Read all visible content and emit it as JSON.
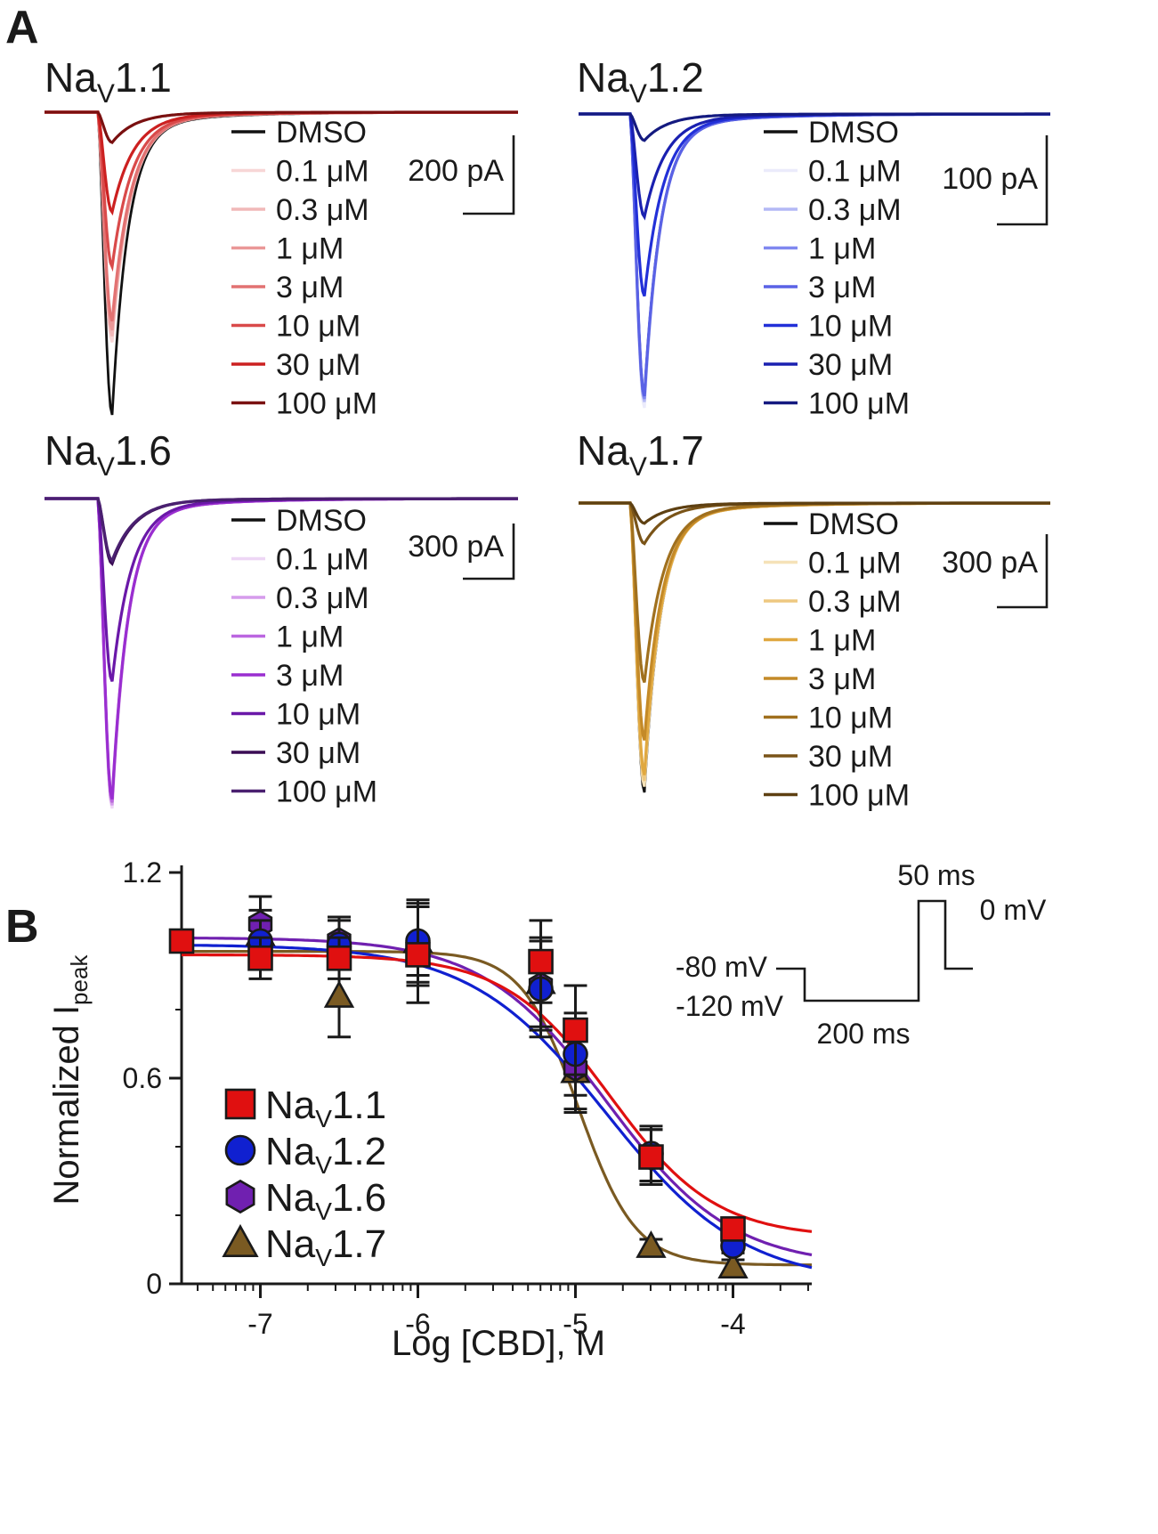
{
  "panels": {
    "a_label": "A",
    "b_label": "B"
  },
  "concentration_labels": [
    "DMSO",
    "0.1 μM",
    "0.3 μM",
    "1 μM",
    "3 μM",
    "10 μM",
    "30 μM",
    "100 μM"
  ],
  "chart_data": [
    {
      "type": "line",
      "panel": "A",
      "title_base": "Na",
      "title_sub": "V",
      "title_suffix": "1.1",
      "scale_bar_label": "200 pA",
      "series": [
        {
          "name": "DMSO",
          "color": "#111111",
          "relative_peak": 1.0
        },
        {
          "name": "0.1 μM",
          "color": "#f7d6d6",
          "relative_peak": 0.76
        },
        {
          "name": "0.3 μM",
          "color": "#f1b8b8",
          "relative_peak": 0.74
        },
        {
          "name": "1 μM",
          "color": "#ea9898",
          "relative_peak": 0.72
        },
        {
          "name": "3 μM",
          "color": "#e27272",
          "relative_peak": 0.69
        },
        {
          "name": "10 μM",
          "color": "#d94a4a",
          "relative_peak": 0.51
        },
        {
          "name": "30 μM",
          "color": "#cc2020",
          "relative_peak": 0.33
        },
        {
          "name": "100 μM",
          "color": "#7a1010",
          "relative_peak": 0.1
        }
      ]
    },
    {
      "type": "line",
      "panel": "A",
      "title_base": "Na",
      "title_sub": "V",
      "title_suffix": "1.2",
      "scale_bar_label": "100 pA",
      "series": [
        {
          "name": "DMSO",
          "color": "#111111",
          "relative_peak": 0.96
        },
        {
          "name": "0.1 μM",
          "color": "#ebebfb",
          "relative_peak": 1.0
        },
        {
          "name": "0.3 μM",
          "color": "#b3b8f5",
          "relative_peak": 0.98
        },
        {
          "name": "1 μM",
          "color": "#8088f0",
          "relative_peak": 0.97
        },
        {
          "name": "3 μM",
          "color": "#5a62e6",
          "relative_peak": 0.96
        },
        {
          "name": "10 μM",
          "color": "#2230d8",
          "relative_peak": 0.62
        },
        {
          "name": "30 μM",
          "color": "#1a20b0",
          "relative_peak": 0.35
        },
        {
          "name": "100 μM",
          "color": "#141a80",
          "relative_peak": 0.09
        }
      ]
    },
    {
      "type": "line",
      "panel": "A",
      "title_base": "Na",
      "title_sub": "V",
      "title_suffix": "1.6",
      "scale_bar_label": "300 pA",
      "series": [
        {
          "name": "DMSO",
          "color": "#111111",
          "relative_peak": 0.98
        },
        {
          "name": "0.1 μM",
          "color": "#eed6f5",
          "relative_peak": 1.0
        },
        {
          "name": "0.3 μM",
          "color": "#d59cec",
          "relative_peak": 0.99
        },
        {
          "name": "1 μM",
          "color": "#bb66e0",
          "relative_peak": 0.98
        },
        {
          "name": "3 μM",
          "color": "#9a2ed0",
          "relative_peak": 0.97
        },
        {
          "name": "10 μM",
          "color": "#6a18a8",
          "relative_peak": 0.59
        },
        {
          "name": "30 μM",
          "color": "#3a0c54",
          "relative_peak": 0.21
        },
        {
          "name": "100 μM",
          "color": "#4a2070",
          "relative_peak": 0.2
        }
      ]
    },
    {
      "type": "line",
      "panel": "A",
      "title_base": "Na",
      "title_sub": "V",
      "title_suffix": "1.7",
      "scale_bar_label": "300 pA",
      "series": [
        {
          "name": "DMSO",
          "color": "#111111",
          "relative_peak": 1.0
        },
        {
          "name": "0.1 μM",
          "color": "#f5e2b8",
          "relative_peak": 0.98
        },
        {
          "name": "0.3 μM",
          "color": "#eec880",
          "relative_peak": 0.96
        },
        {
          "name": "1 μM",
          "color": "#e0a840",
          "relative_peak": 0.94
        },
        {
          "name": "3 μM",
          "color": "#c48a28",
          "relative_peak": 0.82
        },
        {
          "name": "10 μM",
          "color": "#a0701e",
          "relative_peak": 0.62
        },
        {
          "name": "30 μM",
          "color": "#7a5418",
          "relative_peak": 0.14
        },
        {
          "name": "100 μM",
          "color": "#5e4012",
          "relative_peak": 0.07
        }
      ]
    },
    {
      "type": "scatter",
      "panel": "B",
      "xlabel": "Log [CBD], M",
      "ylabel_base": "Normalized I",
      "ylabel_sub": "peak",
      "xlim": [
        -7.5,
        -3.5
      ],
      "ylim": [
        0,
        1.2
      ],
      "xticks": [
        -7,
        -6,
        -5,
        -4
      ],
      "xtick_labels": [
        "-7",
        "-6",
        "-5",
        "-4"
      ],
      "yticks": [
        0,
        0.6,
        1.2
      ],
      "ytick_labels": [
        "0",
        "0.6",
        "1.2"
      ],
      "series": [
        {
          "name": "NaV1.1",
          "legend_base": "Na",
          "legend_sub": "V",
          "legend_suffix": "1.1",
          "marker": "square",
          "color": "#e01010",
          "x": [
            -7.5,
            -7,
            -6.5,
            -6,
            -5.22,
            -5,
            -4.52,
            -4
          ],
          "y": [
            1.0,
            0.95,
            0.95,
            0.96,
            0.94,
            0.74,
            0.37,
            0.16
          ],
          "err": [
            0,
            0.06,
            0.06,
            0.14,
            0.12,
            0.13,
            0.08,
            0.02
          ],
          "fit": {
            "top": 0.96,
            "bottom": 0.135,
            "log_ic50": -4.78,
            "hill": 1.3
          }
        },
        {
          "name": "NaV1.2",
          "legend_base": "Na",
          "legend_sub": "V",
          "legend_suffix": "1.2",
          "marker": "circle",
          "color": "#1020d0",
          "x": [
            -7,
            -6.5,
            -6,
            -5.22,
            -5,
            -4.52,
            -4
          ],
          "y": [
            1.0,
            0.99,
            1.0,
            0.86,
            0.67,
            0.38,
            0.11
          ],
          "err": [
            0.06,
            0.07,
            0.12,
            0.14,
            0.12,
            0.08,
            0.02
          ],
          "fit": {
            "top": 0.99,
            "bottom": 0.0,
            "log_ic50": -4.8,
            "hill": 1.0
          }
        },
        {
          "name": "NaV1.6",
          "legend_base": "Na",
          "legend_sub": "V",
          "legend_suffix": "1.6",
          "marker": "hexagon",
          "color": "#7020b0",
          "x": [
            -7,
            -6.5,
            -6,
            -5.22,
            -5,
            -4.52,
            -4
          ],
          "y": [
            1.05,
            1.0,
            0.99,
            0.87,
            0.63,
            0.37,
            0.12
          ],
          "err": [
            0.08,
            0.07,
            0.12,
            0.13,
            0.12,
            0.08,
            0.02
          ],
          "fit": {
            "top": 1.01,
            "bottom": 0.05,
            "log_ic50": -4.8,
            "hill": 1.1
          }
        },
        {
          "name": "NaV1.7",
          "legend_base": "Na",
          "legend_sub": "V",
          "legend_suffix": "1.7",
          "marker": "triangle",
          "color": "#7a5a22",
          "x": [
            -7,
            -6.5,
            -6,
            -5.22,
            -5,
            -4.52,
            -4
          ],
          "y": [
            1.02,
            0.84,
            1.0,
            0.88,
            0.62,
            0.11,
            0.05
          ],
          "err": [
            0.07,
            0.12,
            0.1,
            0.13,
            0.12,
            0.02,
            0.02
          ],
          "fit": {
            "top": 0.97,
            "bottom": 0.055,
            "log_ic50": -4.98,
            "hill": 2.4
          }
        }
      ],
      "protocol": {
        "holding_label": "-80 mV",
        "hyper_label": "-120 mV",
        "hyper_duration_label": "200 ms",
        "test_duration_label": "50 ms",
        "test_label": "0 mV"
      }
    }
  ]
}
